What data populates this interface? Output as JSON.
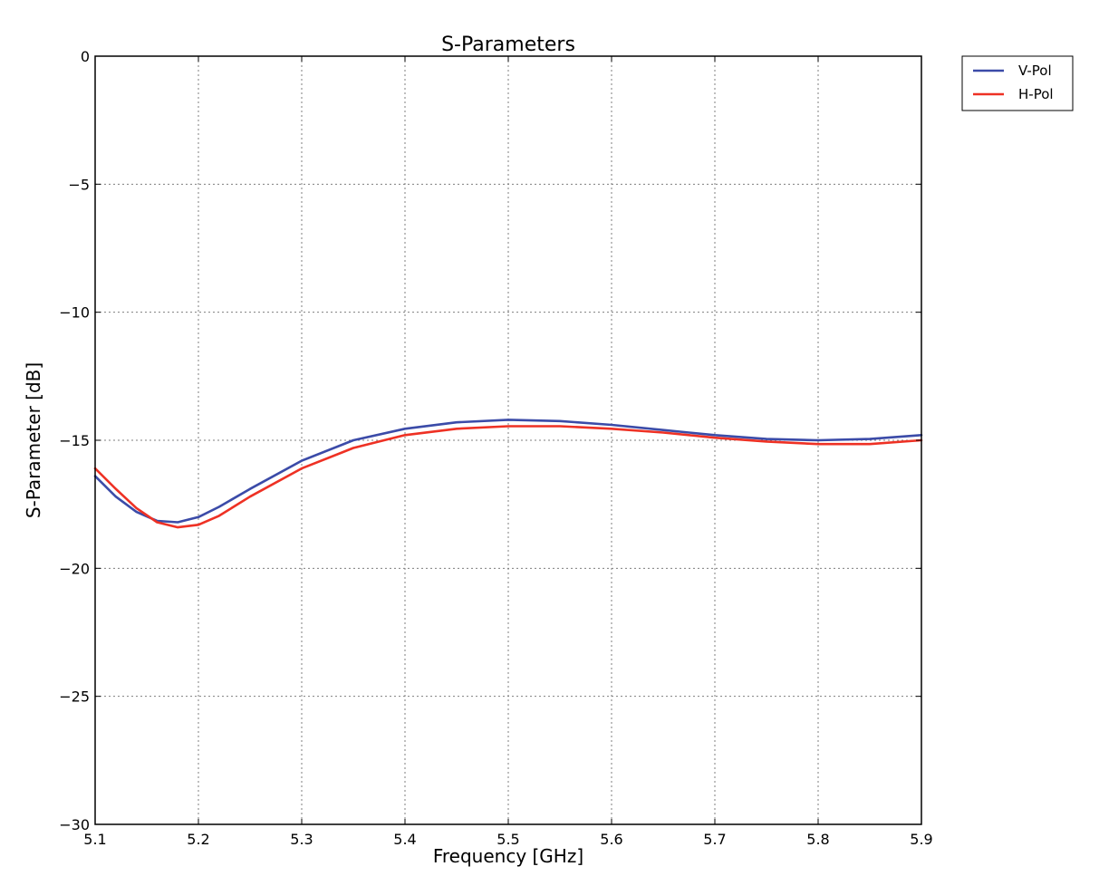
{
  "chart_data": {
    "type": "line",
    "title": "S-Parameters",
    "xlabel": "Frequency [GHz]",
    "ylabel": "S-Parameter [dB]",
    "xlim": [
      5.1,
      5.9
    ],
    "ylim": [
      -30,
      0
    ],
    "grid": true,
    "legend_position": "outside-top-right",
    "x_ticks": [
      "5.1",
      "5.2",
      "5.3",
      "5.4",
      "5.5",
      "5.6",
      "5.7",
      "5.8",
      "5.9"
    ],
    "y_ticks": [
      "0",
      "−5",
      "−10",
      "−15",
      "−20",
      "−25",
      "−30"
    ],
    "x": [
      5.1,
      5.12,
      5.14,
      5.16,
      5.18,
      5.2,
      5.22,
      5.25,
      5.3,
      5.35,
      5.4,
      5.45,
      5.5,
      5.55,
      5.6,
      5.65,
      5.7,
      5.75,
      5.8,
      5.85,
      5.9
    ],
    "series": [
      {
        "name": "V-Pol",
        "color": "#3b4ba8",
        "values": [
          -16.4,
          -17.2,
          -17.8,
          -18.15,
          -18.2,
          -18.0,
          -17.6,
          -16.9,
          -15.8,
          -15.0,
          -14.55,
          -14.3,
          -14.2,
          -14.25,
          -14.4,
          -14.6,
          -14.8,
          -14.95,
          -15.0,
          -14.95,
          -14.8
        ]
      },
      {
        "name": "H-Pol",
        "color": "#ee3124",
        "values": [
          -16.1,
          -16.9,
          -17.65,
          -18.2,
          -18.4,
          -18.3,
          -17.95,
          -17.2,
          -16.1,
          -15.3,
          -14.8,
          -14.55,
          -14.45,
          -14.45,
          -14.55,
          -14.7,
          -14.9,
          -15.05,
          -15.15,
          -15.15,
          -15.0
        ]
      }
    ]
  }
}
